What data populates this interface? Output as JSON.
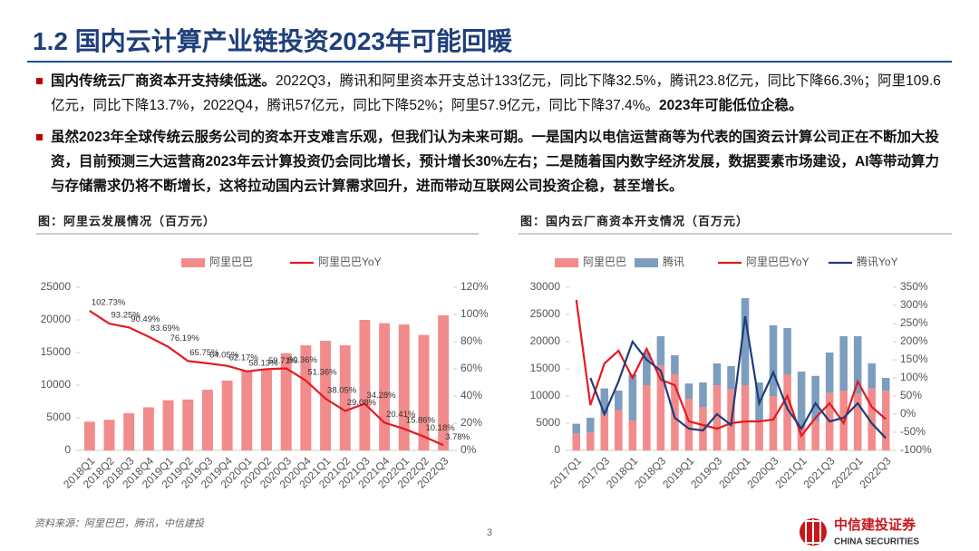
{
  "title": "1.2 国内云计算产业链投资2023年可能回暖",
  "bullets": [
    {
      "parts": [
        {
          "text": "国内传统云厂商资本开支持续低迷。",
          "bold": true
        },
        {
          "text": "2022Q3，腾讯和阿里资本开支总计133亿元，同比下降32.5%，腾讯23.8亿元，同比下降66.3%；阿里109.6亿元，同比下降13.7%，2022Q4，腾讯57亿元，同比下降52%；阿里57.9亿元，同比下降37.4%。",
          "bold": false
        },
        {
          "text": "2023年可能低位企稳。",
          "bold": true
        }
      ]
    },
    {
      "parts": [
        {
          "text": "虽然2023年全球传统云服务公司的资本开支难言乐观，但我们认为未来可期。一是国内以电信运营商等为代表的国资云计算公司正在不断加大投资，目前预测三大运营商2023年云计算投资仍会同比增长，预计增长30%左右；二是随着国内数字经济发展，数据要素市场建设，AI等带动算力与存储需求仍将不断增长，这将拉动国内云计算需求回升，进而带动互联网公司投资企稳，甚至增长。",
          "bold": true
        }
      ]
    }
  ],
  "chart_data": [
    {
      "type": "combo",
      "title": "图：阿里云发展情况（百万元）",
      "categories": [
        "2018Q1",
        "2018Q2",
        "2018Q3",
        "2018Q4",
        "2019Q1",
        "2019Q2",
        "2019Q3",
        "2019Q4",
        "2020Q1",
        "2020Q2",
        "2020Q3",
        "2020Q4",
        "2021Q1",
        "2021Q2",
        "2021Q3",
        "2021Q4",
        "2022Q1",
        "2022Q2",
        "2022Q3"
      ],
      "series": [
        {
          "name": "阿里巴巴",
          "kind": "bar",
          "color": "#f28b8b",
          "values": [
            4400,
            4700,
            5700,
            6600,
            7700,
            7800,
            9300,
            10700,
            12200,
            12300,
            14900,
            16100,
            16800,
            16100,
            20000,
            19500,
            19300,
            17700,
            20700
          ]
        },
        {
          "name": "阿里巴巴YoY",
          "kind": "line",
          "axis": "y2",
          "color": "#e31b23",
          "values": [
            102.73,
            93.25,
            90.49,
            83.69,
            76.19,
            65.75,
            64.05,
            62.17,
            58.13,
            59.71,
            60.36,
            51.36,
            38.05,
            29.08,
            34.28,
            20.41,
            15.86,
            10.18,
            3.78
          ],
          "value_labels": [
            "102.73%",
            "93.25%",
            "90.49%",
            "83.69%",
            "76.19%",
            "65.75%",
            "64.05%",
            "62.17%",
            "58.13%",
            "59.71%",
            "60.36%",
            "51.36%",
            "38.05%",
            "29.08%",
            "34.28%",
            "20.41%",
            "15.86%",
            "10.18%",
            "3.78%"
          ]
        }
      ],
      "stacked": false,
      "ylim": [
        0,
        25000
      ],
      "yticks": [
        0,
        5000,
        10000,
        15000,
        20000,
        25000
      ],
      "y2lim": [
        0,
        120
      ],
      "y2ticks": [
        {
          "value": 0,
          "label": "0%"
        },
        {
          "value": 20,
          "label": "20%"
        },
        {
          "value": 40,
          "label": "40%"
        },
        {
          "value": 60,
          "label": "60%"
        },
        {
          "value": 80,
          "label": "80%"
        },
        {
          "value": 100,
          "label": "100%"
        },
        {
          "value": 120,
          "label": "120%"
        }
      ]
    },
    {
      "type": "combo",
      "title": "图：国内云厂商资本开支情况（百万元）",
      "categories": [
        "2017Q1",
        null,
        "2017Q3",
        null,
        "2018Q1",
        null,
        "2018Q3",
        null,
        "2019Q1",
        null,
        "2019Q3",
        null,
        "2020Q1",
        null,
        "2020Q3",
        null,
        "2021Q1",
        null,
        "2021Q3",
        null,
        "2022Q1",
        null,
        "2022Q3"
      ],
      "series": [
        {
          "name": "阿里巴巴",
          "kind": "bar",
          "color": "#f28b8b",
          "values": [
            3100,
            3300,
            6600,
            7400,
            5500,
            12000,
            15600,
            14000,
            9500,
            8000,
            12000,
            11200,
            12000,
            5200,
            10000,
            14000,
            4500,
            5400,
            10600,
            11000,
            10400,
            11400,
            10960
          ]
        },
        {
          "name": "腾讯",
          "kind": "bar",
          "color": "#7d9dbf",
          "values": [
            1800,
            2700,
            4800,
            3600,
            8500,
            6000,
            5400,
            3500,
            2800,
            4500,
            4000,
            4300,
            16000,
            7300,
            13000,
            8500,
            10000,
            8300,
            7400,
            10000,
            10600,
            4600,
            2380
          ]
        },
        {
          "name": "阿里巴巴YoY",
          "kind": "line",
          "axis": "y2",
          "color": "#e31b23",
          "values": [
            315,
            25,
            140,
            175,
            100,
            180,
            95,
            80,
            -20,
            -30,
            -40,
            -25,
            -20,
            -20,
            -15,
            50,
            -60,
            -10,
            30,
            -25,
            90,
            20,
            -13.7
          ]
        },
        {
          "name": "腾讯YoY",
          "kind": "line",
          "axis": "y2",
          "color": "#1f3d7a",
          "values": [
            null,
            100,
            0,
            90,
            200,
            150,
            120,
            -10,
            -40,
            -45,
            0,
            -30,
            270,
            30,
            115,
            15,
            -40,
            30,
            -20,
            -10,
            30,
            -25,
            -66.3
          ]
        }
      ],
      "stacked": true,
      "ylim": [
        0,
        30000
      ],
      "yticks": [
        0,
        5000,
        10000,
        15000,
        20000,
        25000,
        30000
      ],
      "y2lim": [
        -100,
        350
      ],
      "y2ticks": [
        {
          "value": -100,
          "label": "-100%"
        },
        {
          "value": -50,
          "label": "-50%"
        },
        {
          "value": 0,
          "label": "0%"
        },
        {
          "value": 50,
          "label": "50%"
        },
        {
          "value": 100,
          "label": "100%"
        },
        {
          "value": 150,
          "label": "150%"
        },
        {
          "value": 200,
          "label": "200%"
        },
        {
          "value": 250,
          "label": "250%"
        },
        {
          "value": 300,
          "label": "300%"
        },
        {
          "value": 350,
          "label": "350%"
        }
      ]
    }
  ],
  "source": "资料来源：阿里巴巴，腾讯，中信建投",
  "page_number": "3",
  "logo": {
    "name": "中信建投证券",
    "english": "CHINA SECURITIES"
  }
}
